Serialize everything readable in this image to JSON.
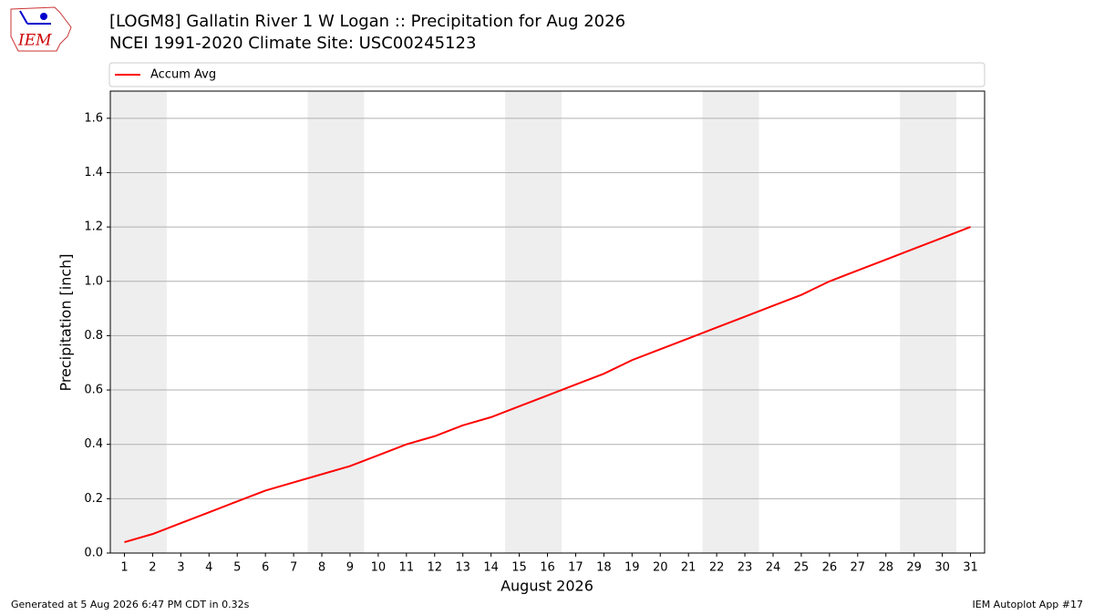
{
  "logo": {
    "text": "IEM"
  },
  "footer": {
    "left": "Generated at 5 Aug 2026 6:47 PM CDT in 0.32s",
    "right": "IEM Autoplot App #17"
  },
  "chart_data": {
    "type": "line",
    "title": "[LOGM8] Gallatin River 1 W Logan :: Precipitation for Aug 2026",
    "subtitle": "NCEI 1991-2020 Climate Site: USC00245123",
    "x_label": "August 2026",
    "y_label": "Precipitation [inch]",
    "x": [
      1,
      2,
      3,
      4,
      5,
      6,
      7,
      8,
      9,
      10,
      11,
      12,
      13,
      14,
      15,
      16,
      17,
      18,
      19,
      20,
      21,
      22,
      23,
      24,
      25,
      26,
      27,
      28,
      29,
      30,
      31
    ],
    "series": [
      {
        "name": "Accum Avg",
        "color": "#ff0000",
        "values": [
          0.04,
          0.07,
          0.11,
          0.15,
          0.19,
          0.23,
          0.26,
          0.29,
          0.32,
          0.36,
          0.4,
          0.43,
          0.47,
          0.5,
          0.54,
          0.58,
          0.62,
          0.66,
          0.71,
          0.75,
          0.79,
          0.83,
          0.87,
          0.91,
          0.95,
          1.0,
          1.04,
          1.08,
          1.12,
          1.16,
          1.2
        ]
      }
    ],
    "xlim": [
      0.5,
      31.5
    ],
    "xticks": [
      1,
      2,
      3,
      4,
      5,
      6,
      7,
      8,
      9,
      10,
      11,
      12,
      13,
      14,
      15,
      16,
      17,
      18,
      19,
      20,
      21,
      22,
      23,
      24,
      25,
      26,
      27,
      28,
      29,
      30,
      31
    ],
    "ylim": [
      0,
      1.7
    ],
    "yticks": [
      {
        "value": 0,
        "label": "0.0"
      },
      {
        "value": 0.2,
        "label": "0.2"
      },
      {
        "value": 0.4,
        "label": "0.4"
      },
      {
        "value": 0.6,
        "label": "0.6"
      },
      {
        "value": 0.8,
        "label": "0.8"
      },
      {
        "value": 1,
        "label": "1.0"
      },
      {
        "value": 1.2,
        "label": "1.2"
      },
      {
        "value": 1.4,
        "label": "1.4"
      },
      {
        "value": 1.6,
        "label": "1.6"
      }
    ],
    "shaded_x": [
      [
        0.5,
        2.5
      ],
      [
        7.5,
        9.5
      ],
      [
        14.5,
        16.5
      ],
      [
        21.5,
        23.5
      ],
      [
        28.5,
        30.5
      ]
    ],
    "grid": true
  }
}
